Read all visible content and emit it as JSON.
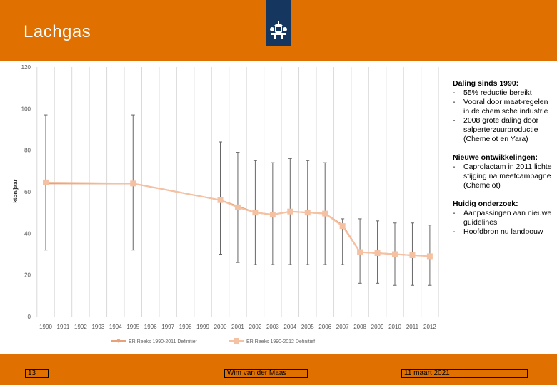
{
  "slide": {
    "title": "Lachgas"
  },
  "chart_data": {
    "type": "line",
    "ylabel": "kton/jaar",
    "ylim": [
      0,
      120
    ],
    "yticks": [
      0,
      20,
      40,
      60,
      80,
      100,
      120
    ],
    "categories": [
      "1990",
      "1991",
      "1992",
      "1993",
      "1994",
      "1995",
      "1996",
      "1997",
      "1998",
      "1999",
      "2000",
      "2001",
      "2002",
      "2003",
      "2004",
      "2005",
      "2006",
      "2007",
      "2008",
      "2009",
      "2010",
      "2011",
      "2012"
    ],
    "grid": "vertical",
    "legend_position": "bottom",
    "series": [
      {
        "name": "ER Reeks 1990-2011 Definitief",
        "color": "#e8a27a",
        "x": [
          "1990",
          "1995",
          "2000",
          "2001",
          "2002",
          "2003",
          "2004",
          "2005",
          "2006",
          "2007",
          "2008",
          "2009",
          "2010",
          "2011"
        ],
        "values": [
          64,
          64,
          56,
          53,
          50,
          49,
          50.5,
          50,
          49.5,
          44,
          31,
          30.5,
          30,
          29.5
        ]
      },
      {
        "name": "ER Reeks 1990-2012 Definitief",
        "color": "#f5c1a3",
        "x": [
          "1990",
          "1995",
          "2000",
          "2001",
          "2002",
          "2003",
          "2004",
          "2005",
          "2006",
          "2007",
          "2008",
          "2009",
          "2010",
          "2011",
          "2012"
        ],
        "values": [
          64.5,
          64,
          56,
          52.5,
          50,
          49,
          50.5,
          50,
          49.5,
          43.5,
          31,
          30.5,
          30,
          29.5,
          29
        ],
        "error_bars": [
          {
            "x": "1990",
            "low": 32,
            "high": 97
          },
          {
            "x": "1995",
            "low": 32,
            "high": 97
          },
          {
            "x": "2000",
            "low": 30,
            "high": 84
          },
          {
            "x": "2001",
            "low": 26,
            "high": 79
          },
          {
            "x": "2002",
            "low": 25,
            "high": 75
          },
          {
            "x": "2003",
            "low": 25,
            "high": 74
          },
          {
            "x": "2004",
            "low": 25,
            "high": 76
          },
          {
            "x": "2005",
            "low": 25,
            "high": 75
          },
          {
            "x": "2006",
            "low": 25,
            "high": 74
          },
          {
            "x": "2007",
            "low": 25,
            "high": 47
          },
          {
            "x": "2008",
            "low": 16,
            "high": 47
          },
          {
            "x": "2009",
            "low": 16,
            "high": 46
          },
          {
            "x": "2010",
            "low": 15,
            "high": 45
          },
          {
            "x": "2011",
            "low": 15,
            "high": 45
          },
          {
            "x": "2012",
            "low": 15,
            "high": 44
          }
        ]
      }
    ]
  },
  "notes": [
    {
      "heading": "Daling sinds 1990:",
      "items": [
        "55% reductie bereikt",
        "Vooral door maat-regelen in de chemische industrie",
        "2008 grote daling door salperterzuurproductie (Chemelot en Yara)"
      ]
    },
    {
      "heading": "Nieuwe ontwikkelingen:",
      "items": [
        "Caprolactam in 2011 lichte stijging na meetcampagne (Chemelot)"
      ]
    },
    {
      "heading": "Huidig onderzoek:",
      "items": [
        "Aanpassingen aan nieuwe guidelines",
        "Hoofdbron nu landbouw"
      ]
    }
  ],
  "footer": {
    "page_number": "13",
    "author": "Wim van der Maas",
    "date": "11 maart 2021"
  },
  "colors": {
    "brand_orange": "#e07000",
    "logo_blue": "#15375f"
  }
}
